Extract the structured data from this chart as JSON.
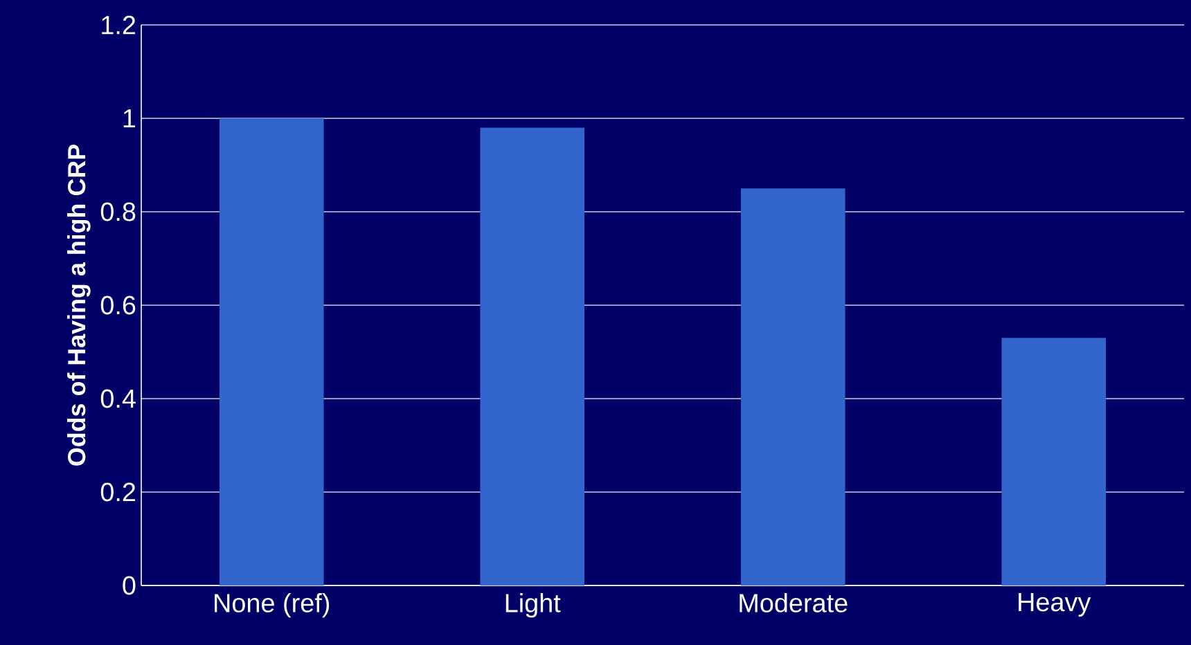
{
  "chart_data": {
    "type": "bar",
    "ylabel": "Odds of Having a high CRP",
    "categories": [
      "None (ref)",
      "Light",
      "Moderate",
      "Heavy"
    ],
    "values": [
      1.0,
      0.98,
      0.85,
      0.53
    ],
    "color": "#3366cc",
    "ylim": [
      0,
      1.2
    ],
    "yticks": [
      0,
      0.2,
      0.4,
      0.6,
      0.8,
      1,
      1.2
    ],
    "grid": "y"
  }
}
